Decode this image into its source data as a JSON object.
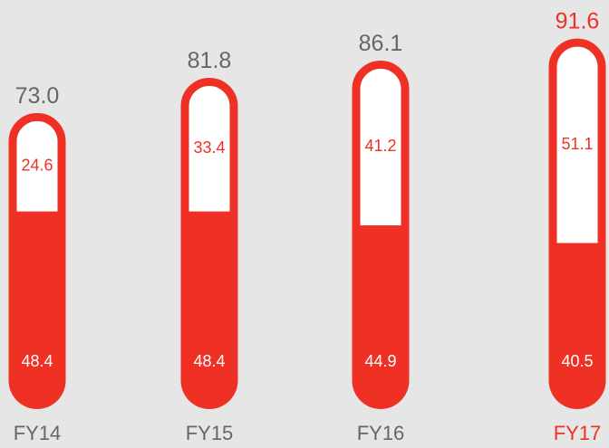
{
  "chart_data": {
    "type": "stacked-pill",
    "categories": [
      "FY14",
      "FY15",
      "FY16",
      "FY17"
    ],
    "series": [
      {
        "color": "#ee3124",
        "values": [
          48.4,
          48.4,
          44.9,
          40.5
        ]
      },
      {
        "color": "#ffffff",
        "values": [
          24.6,
          33.4,
          41.2,
          51.1
        ]
      }
    ],
    "totals": {
      "values": [
        73.0,
        81.8,
        86.1,
        91.6
      ],
      "value_labels": [
        "73.0",
        "81.8",
        "86.1",
        "91.6"
      ]
    },
    "outline_color": "#ee3124",
    "label_colors": [
      "#666666",
      "#666666",
      "#666666",
      "#ee3124"
    ]
  }
}
